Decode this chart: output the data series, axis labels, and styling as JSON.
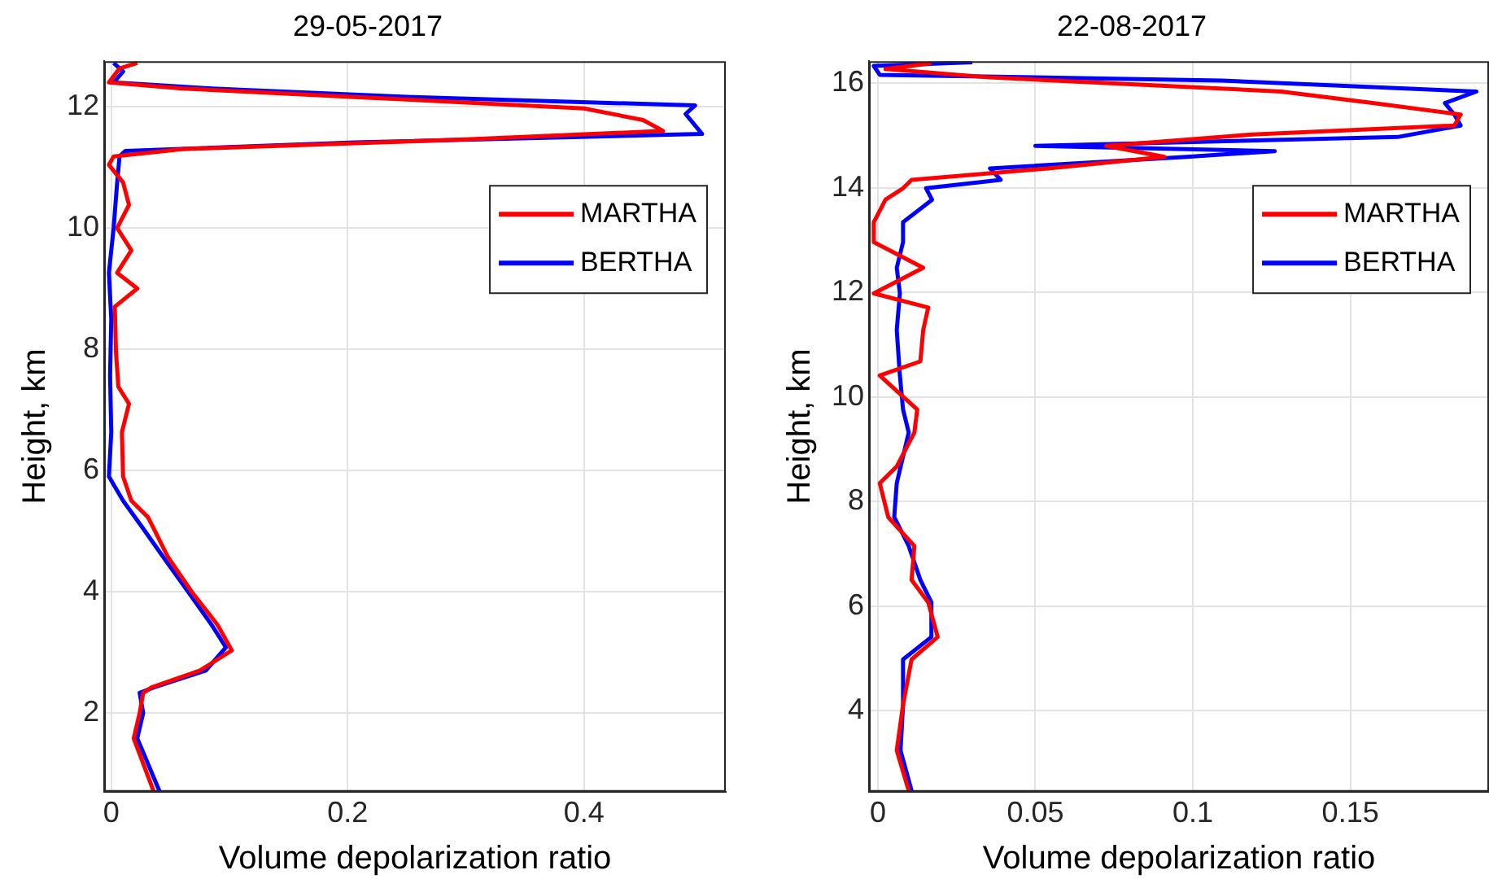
{
  "chart_data": [
    {
      "type": "line",
      "title": "29-05-2017",
      "xlabel": "Volume depolarization ratio",
      "ylabel": "Height, km",
      "xlim": [
        -0.006,
        0.52
      ],
      "xticks": [
        0,
        0.2,
        0.4
      ],
      "ylim": [
        0.7,
        12.75
      ],
      "yticks": [
        2,
        4,
        6,
        8,
        10,
        12
      ],
      "grid": true,
      "legend": "top right",
      "marker": "none",
      "series": [
        {
          "name": "MARTHA",
          "color": "#ff0000",
          "x": [
            0.036,
            0.019,
            0.024,
            0.027,
            0.034,
            0.075,
            0.102,
            0.09,
            0.068,
            0.048,
            0.036,
            0.031,
            0.017,
            0.01,
            0.009,
            0.015,
            0.006,
            0.004,
            0.003,
            0.022,
            0.005,
            0.017,
            0.005,
            0.015,
            0.01,
            -0.002,
            0.002,
            0.06,
            0.3,
            0.467,
            0.45,
            0.4,
            0.206,
            0.06,
            -0.002,
            0.007,
            0.022
          ],
          "values": [
            0.7,
            1.58,
            2.0,
            2.33,
            2.42,
            2.7,
            3.03,
            3.45,
            4.0,
            4.57,
            5.04,
            5.23,
            5.5,
            5.9,
            6.63,
            7.1,
            7.38,
            7.95,
            8.7,
            9.0,
            9.26,
            9.63,
            10.0,
            10.38,
            10.75,
            11.04,
            11.18,
            11.3,
            11.46,
            11.6,
            11.78,
            11.97,
            12.16,
            12.3,
            12.4,
            12.63,
            12.72
          ]
        },
        {
          "name": "BERTHA",
          "color": "#0000ff",
          "x": [
            0.041,
            0.022,
            0.027,
            0.024,
            0.036,
            0.08,
            0.097,
            0.085,
            0.065,
            0.044,
            0.027,
            0.01,
            -0.002,
            0.0,
            -0.001,
            0.0,
            -0.002,
            0.002,
            0.005,
            0.007,
            0.012,
            0.206,
            0.5,
            0.494,
            0.486,
            0.494,
            0.254,
            0.085,
            0.002,
            0.01,
            0.002
          ],
          "values": [
            0.7,
            1.58,
            2.0,
            2.33,
            2.42,
            2.7,
            3.08,
            3.45,
            4.0,
            4.57,
            5.04,
            5.5,
            5.9,
            6.63,
            7.57,
            8.5,
            9.26,
            10.0,
            10.75,
            11.18,
            11.27,
            11.41,
            11.55,
            11.69,
            11.88,
            12.02,
            12.16,
            12.3,
            12.4,
            12.58,
            12.72
          ]
        }
      ]
    },
    {
      "type": "line",
      "title": "22-08-2017",
      "xlabel": "Volume depolarization ratio",
      "ylabel": "Height, km",
      "xlim": [
        -0.0028,
        0.194
      ],
      "xticks": [
        0,
        0.05,
        0.1,
        0.15
      ],
      "ylim": [
        2.45,
        16.42
      ],
      "yticks": [
        4,
        6,
        8,
        10,
        12,
        14,
        16
      ],
      "grid": true,
      "legend": "top right",
      "marker": "none",
      "series": [
        {
          "name": "MARTHA",
          "color": "#ff0000",
          "x": [
            0.0098,
            0.006,
            0.008,
            0.0107,
            0.019,
            0.016,
            0.0107,
            0.0116,
            0.0033,
            0.0006,
            0.006,
            0.0116,
            0.0125,
            0.0006,
            0.0135,
            0.0144,
            0.016,
            -0.0013,
            0.0144,
            -0.0013,
            -0.0013,
            0.0024,
            0.008,
            0.0107,
            0.054,
            0.091,
            0.0725,
            0.119,
            0.183,
            0.185,
            0.157,
            0.128,
            0.0356,
            0.0024,
            0.017
          ],
          "values": [
            2.47,
            3.24,
            4.11,
            4.98,
            5.41,
            6.07,
            6.5,
            7.15,
            7.7,
            8.35,
            8.67,
            9.32,
            9.76,
            10.41,
            10.68,
            11.28,
            11.71,
            11.98,
            12.47,
            12.96,
            13.34,
            13.77,
            13.99,
            14.15,
            14.37,
            14.59,
            14.8,
            15.02,
            15.19,
            15.4,
            15.62,
            15.84,
            16.11,
            16.27,
            16.38
          ]
        },
        {
          "name": "BERTHA",
          "color": "#0000ff",
          "x": [
            0.0107,
            0.0072,
            0.008,
            0.008,
            0.017,
            0.017,
            0.0135,
            0.0098,
            0.0052,
            0.006,
            0.0098,
            0.008,
            0.007,
            0.006,
            0.007,
            0.006,
            0.008,
            0.008,
            0.0172,
            0.0153,
            0.039,
            0.0356,
            0.098,
            0.126,
            0.05,
            0.165,
            0.185,
            0.183,
            0.18,
            0.19,
            0.109,
            0.0006,
            -0.0013,
            0.03
          ],
          "values": [
            2.47,
            3.24,
            4.11,
            4.98,
            5.41,
            6.07,
            6.5,
            7.15,
            7.7,
            8.35,
            9.32,
            9.76,
            10.41,
            11.28,
            11.98,
            12.47,
            12.96,
            13.34,
            13.77,
            13.99,
            14.15,
            14.37,
            14.59,
            14.7,
            14.8,
            14.97,
            15.19,
            15.4,
            15.62,
            15.84,
            16.05,
            16.16,
            16.33,
            16.4
          ]
        }
      ]
    }
  ]
}
